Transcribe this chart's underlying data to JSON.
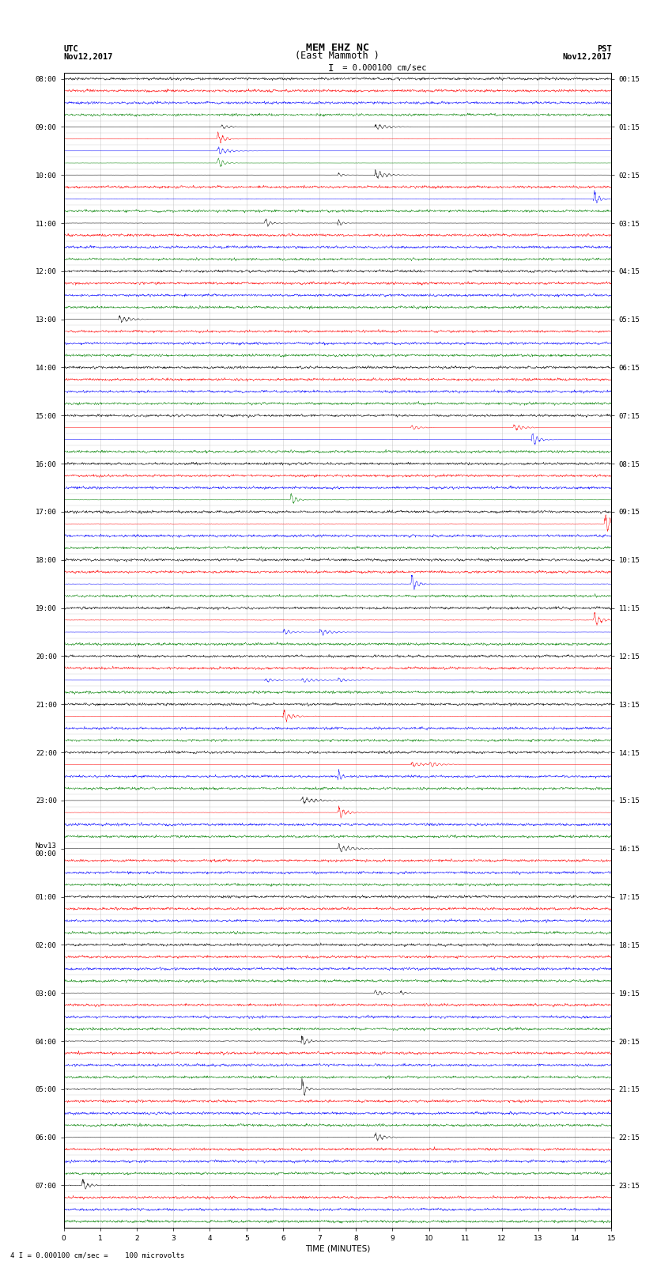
{
  "title_line1": "MEM EHZ NC",
  "title_line2": "(East Mammoth )",
  "title_line3": "I = 0.000100 cm/sec",
  "left_top_label": "UTC",
  "left_date": "Nov12,2017",
  "right_top_label": "PST",
  "right_date": "Nov12,2017",
  "bottom_label": "TIME (MINUTES)",
  "bottom_note": "4 I = 0.000100 cm/sec =    100 microvolts",
  "utc_times_hourly": [
    "08:00",
    "09:00",
    "10:00",
    "11:00",
    "12:00",
    "13:00",
    "14:00",
    "15:00",
    "16:00",
    "17:00",
    "18:00",
    "19:00",
    "20:00",
    "21:00",
    "22:00",
    "23:00",
    "Nov13\n00:00",
    "01:00",
    "02:00",
    "03:00",
    "04:00",
    "05:00",
    "06:00",
    "07:00"
  ],
  "pst_times_hourly": [
    "00:15",
    "01:15",
    "02:15",
    "03:15",
    "04:15",
    "05:15",
    "06:15",
    "07:15",
    "08:15",
    "09:15",
    "10:15",
    "11:15",
    "12:15",
    "13:15",
    "14:15",
    "15:15",
    "16:15",
    "17:15",
    "18:15",
    "19:15",
    "20:15",
    "21:15",
    "22:15",
    "23:15"
  ],
  "trace_colors_cycle": [
    "black",
    "red",
    "blue",
    "green"
  ],
  "n_traces": 96,
  "traces_per_hour": 4,
  "minutes": 15,
  "samples_per_trace": 1800,
  "noise_amplitude": 0.06,
  "background_color": "white",
  "grid_color": "#aaaaaa",
  "trace_lw": 0.35,
  "fig_width": 8.5,
  "fig_height": 16.13,
  "dpi": 100,
  "xlim": [
    0,
    15
  ],
  "xticks": [
    0,
    1,
    2,
    3,
    4,
    5,
    6,
    7,
    8,
    9,
    10,
    11,
    12,
    13,
    14,
    15
  ],
  "title_fontsize": 9,
  "label_fontsize": 7.5,
  "tick_fontsize": 6.5,
  "side_label_fontsize": 7
}
